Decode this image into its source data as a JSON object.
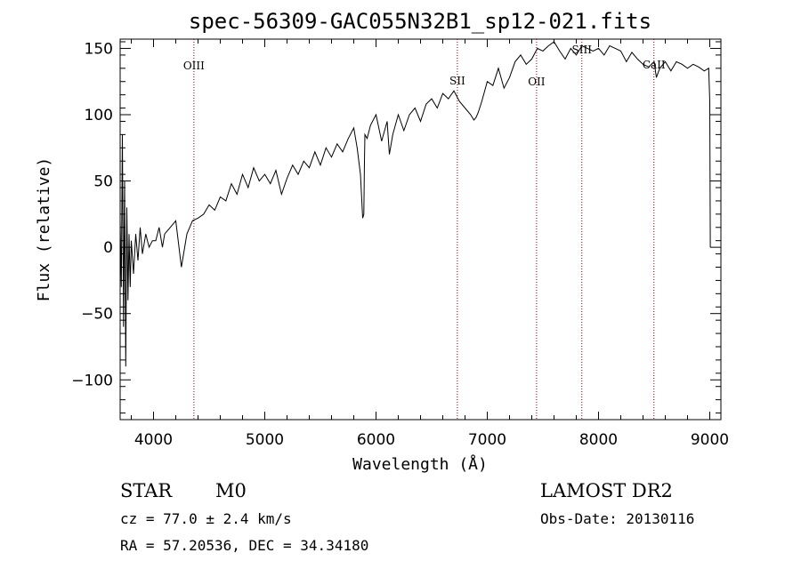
{
  "chart_data": {
    "type": "line",
    "title": "spec-56309-GAC055N32B1_sp12-021.fits",
    "xlabel": "Wavelength (Å)",
    "ylabel": "Flux (relative)",
    "xlim": [
      3700,
      9100
    ],
    "ylim": [
      -130,
      157
    ],
    "xticks": [
      4000,
      5000,
      6000,
      7000,
      8000,
      9000
    ],
    "xtick_labels": [
      "4000",
      "5000",
      "6000",
      "7000",
      "8000",
      "9000"
    ],
    "yticks": [
      -100,
      -50,
      0,
      50,
      100,
      150
    ],
    "ytick_labels": [
      "−100",
      "−50",
      "0",
      "50",
      "100",
      "150"
    ],
    "grid": false,
    "series": [
      {
        "x": [
          3700,
          3710,
          3720,
          3730,
          3740,
          3750,
          3760,
          3770,
          3780,
          3790,
          3800,
          3820,
          3840,
          3860,
          3880,
          3900,
          3930,
          3960,
          3990,
          4020,
          4050,
          4080,
          4100,
          4150,
          4200,
          4250,
          4300,
          4350,
          4400,
          4450,
          4500,
          4550,
          4600,
          4650,
          4700,
          4750,
          4800,
          4850,
          4900,
          4950,
          5000,
          5050,
          5100,
          5150,
          5200,
          5250,
          5300,
          5350,
          5400,
          5450,
          5500,
          5550,
          5600,
          5650,
          5700,
          5750,
          5800,
          5830,
          5860,
          5880,
          5890,
          5895,
          5900,
          5920,
          5950,
          6000,
          6050,
          6100,
          6120,
          6150,
          6200,
          6250,
          6300,
          6350,
          6400,
          6450,
          6500,
          6550,
          6600,
          6650,
          6700,
          6750,
          6800,
          6850,
          6880,
          6900,
          6920,
          6950,
          7000,
          7050,
          7100,
          7150,
          7200,
          7250,
          7300,
          7350,
          7400,
          7450,
          7500,
          7550,
          7600,
          7650,
          7700,
          7750,
          7800,
          7850,
          7900,
          7950,
          8000,
          8050,
          8100,
          8150,
          8200,
          8250,
          8300,
          8350,
          8400,
          8450,
          8500,
          8520,
          8550,
          8600,
          8650,
          8700,
          8750,
          8800,
          8850,
          8900,
          8950,
          8990,
          9000,
          9005
        ],
        "y": [
          20,
          -30,
          85,
          -60,
          50,
          -90,
          30,
          -40,
          10,
          -30,
          5,
          -20,
          10,
          -10,
          15,
          -5,
          10,
          0,
          5,
          5,
          15,
          0,
          10,
          15,
          20,
          -15,
          10,
          20,
          22,
          25,
          32,
          28,
          38,
          35,
          48,
          40,
          55,
          45,
          60,
          50,
          55,
          48,
          58,
          40,
          52,
          62,
          55,
          65,
          60,
          72,
          62,
          75,
          68,
          78,
          72,
          82,
          90,
          75,
          55,
          22,
          25,
          60,
          85,
          82,
          92,
          100,
          80,
          95,
          70,
          85,
          100,
          88,
          100,
          105,
          95,
          108,
          112,
          105,
          116,
          112,
          118,
          110,
          105,
          100,
          96,
          98,
          102,
          110,
          125,
          122,
          135,
          120,
          128,
          140,
          145,
          138,
          142,
          150,
          148,
          152,
          155,
          148,
          142,
          150,
          145,
          152,
          150,
          148,
          150,
          145,
          152,
          150,
          148,
          140,
          147,
          142,
          138,
          136,
          140,
          128,
          135,
          140,
          133,
          140,
          138,
          135,
          138,
          136,
          133,
          135,
          110,
          0
        ]
      }
    ],
    "lines": [
      {
        "label": "OIII",
        "x": 4363
      },
      {
        "label": "SII",
        "x": 6731
      },
      {
        "label": "OII",
        "x": 7443
      },
      {
        "label": "SIII",
        "x": 7850
      },
      {
        "label": "CaII",
        "x": 8498
      }
    ]
  },
  "info": {
    "class": "STAR",
    "subclass": "M0",
    "cz": "cz = 77.0 ± 2.4 km/s",
    "radec": "RA =  57.20536, DEC =  34.34180",
    "survey": "LAMOST DR2",
    "obsdate": "Obs-Date: 20130116"
  },
  "colors": {
    "line_marker": "#8b0000",
    "spectrum": "#000000"
  }
}
